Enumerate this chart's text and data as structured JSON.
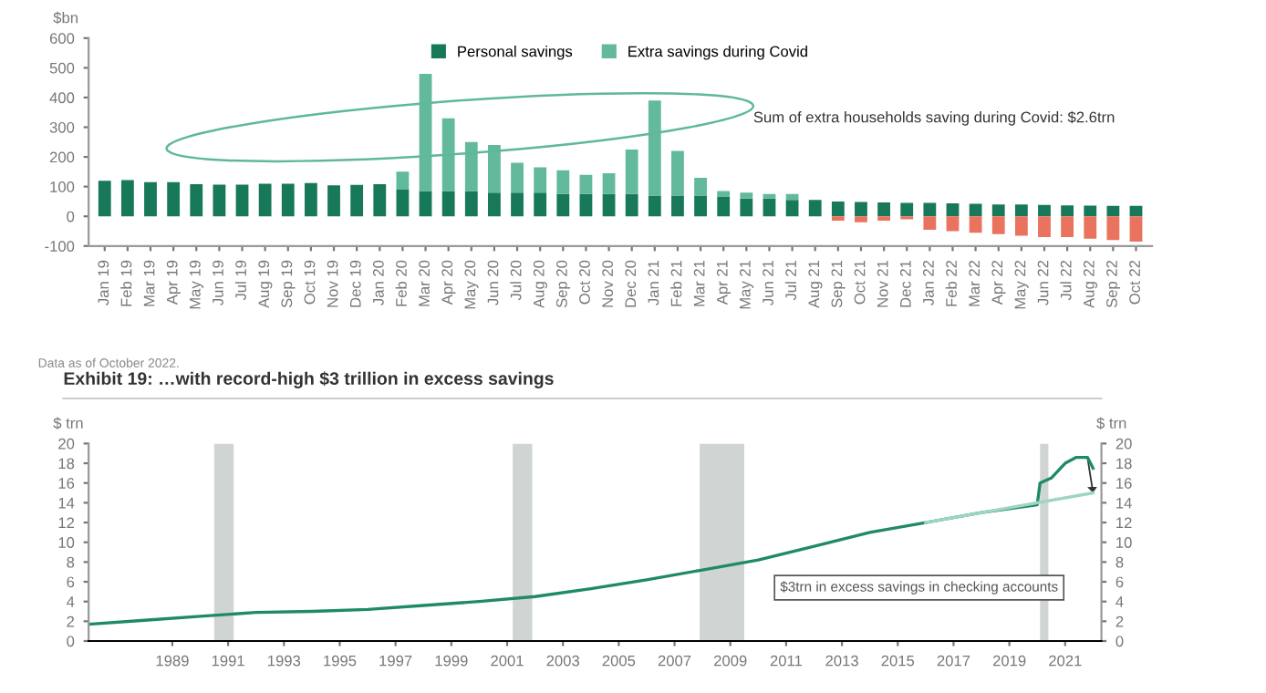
{
  "chart_data": [
    {
      "type": "bar",
      "stacked": true,
      "ylabel": "$bn",
      "legend": "top",
      "grid": false,
      "categories": [
        "Jan 19",
        "Feb 19",
        "Mar 19",
        "Apr 19",
        "May 19",
        "Jun 19",
        "Jul 19",
        "Aug 19",
        "Sep 19",
        "Oct 19",
        "Nov 19",
        "Dec 19",
        "Jan 20",
        "Feb 20",
        "Mar 20",
        "Apr 20",
        "May 20",
        "Jun 20",
        "Jul 20",
        "Aug 20",
        "Sep 20",
        "Oct 20",
        "Nov 20",
        "Dec 20",
        "Jan 21",
        "Feb 21",
        "Mar 21",
        "Apr 21",
        "May 21",
        "Jun 21",
        "Jul 21",
        "Aug 21",
        "Sep 21",
        "Oct 21",
        "Nov 21",
        "Dec 21",
        "Jan 22",
        "Feb 22",
        "Mar 22",
        "Apr 22",
        "May 22",
        "Jun 22",
        "Jul 22",
        "Aug 22",
        "Sep 22",
        "Oct 22"
      ],
      "series": [
        {
          "name": "Personal savings",
          "color": "#17785a",
          "values": [
            120,
            122,
            115,
            115,
            108,
            107,
            107,
            110,
            110,
            112,
            104,
            106,
            108,
            90,
            85,
            85,
            85,
            80,
            80,
            80,
            75,
            75,
            75,
            75,
            70,
            70,
            70,
            65,
            60,
            60,
            55,
            55,
            50,
            48,
            47,
            45,
            45,
            44,
            42,
            40,
            40,
            38,
            37,
            36,
            35,
            35
          ]
        },
        {
          "name": "Extra savings during Covid",
          "color": "#63b99b",
          "colors": [
            "#63b99b",
            "#63b99b",
            "#63b99b",
            "#63b99b",
            "#63b99b",
            "#63b99b",
            "#63b99b",
            "#63b99b",
            "#63b99b",
            "#63b99b",
            "#63b99b",
            "#63b99b",
            "#63b99b",
            "#63b99b",
            "#63b99b",
            "#63b99b",
            "#63b99b",
            "#63b99b",
            "#63b99b",
            "#63b99b",
            "#63b99b",
            "#63b99b",
            "#63b99b",
            "#63b99b",
            "#63b99b",
            "#63b99b",
            "#63b99b",
            "#63b99b",
            "#63b99b",
            "#63b99b",
            "#63b99b",
            "#63b99b",
            "#e9735f",
            "#e9735f",
            "#e9735f",
            "#e9735f",
            "#e9735f",
            "#e9735f",
            "#e9735f",
            "#e9735f",
            "#e9735f",
            "#e9735f",
            "#e9735f",
            "#e9735f",
            "#e9735f",
            "#e9735f"
          ],
          "values": [
            0,
            0,
            0,
            0,
            0,
            0,
            0,
            0,
            0,
            0,
            0,
            0,
            0,
            60,
            395,
            245,
            165,
            160,
            100,
            85,
            80,
            65,
            70,
            150,
            320,
            150,
            60,
            20,
            20,
            15,
            20,
            0,
            -15,
            -20,
            -15,
            -10,
            -45,
            -50,
            -55,
            -60,
            -65,
            -70,
            -70,
            -75,
            -80,
            -85
          ]
        }
      ],
      "ylim": [
        -100,
        600
      ],
      "yticks": [
        -100,
        0,
        100,
        200,
        300,
        400,
        500,
        600
      ],
      "annotations": [
        "Sum of extra households saving during Covid: $2.6trn",
        "Data as of October 2022."
      ]
    },
    {
      "type": "line",
      "title": "Exhibit 19: …with record-high $3 trillion in excess savings",
      "ylabel": "$ trn",
      "y2label": "$ trn",
      "grid": false,
      "series": [
        {
          "color": "#1f8a66",
          "x": [
            1986,
            1988,
            1990,
            1992,
            1994,
            1996,
            1998,
            2000,
            2002,
            2004,
            2006,
            2008,
            2010,
            2012,
            2014,
            2016,
            2018,
            2020.0,
            2020.1,
            2020.5,
            2021.0,
            2021.4,
            2021.8,
            2022.0
          ],
          "values": [
            1.7,
            2.1,
            2.5,
            2.9,
            3.0,
            3.2,
            3.6,
            4.0,
            4.5,
            5.3,
            6.2,
            7.2,
            8.2,
            9.6,
            11.0,
            12.0,
            13.0,
            13.8,
            16.0,
            16.5,
            18.0,
            18.6,
            18.6,
            17.5
          ]
        },
        {
          "color": "#9fd6bf",
          "x": [
            2016,
            2022
          ],
          "values": [
            12.0,
            15.0
          ]
        }
      ],
      "xlim": [
        1986,
        2022.3
      ],
      "xticks": [
        1989,
        1991,
        1993,
        1995,
        1997,
        1999,
        2001,
        2003,
        2005,
        2007,
        2009,
        2011,
        2013,
        2015,
        2017,
        2019,
        2021
      ],
      "ylim": [
        0,
        20
      ],
      "yticks": [
        0,
        2,
        4,
        6,
        8,
        10,
        12,
        14,
        16,
        18,
        20
      ],
      "y2lim": [
        0,
        20
      ],
      "y2ticks": [
        0,
        2,
        4,
        6,
        8,
        10,
        12,
        14,
        16,
        18,
        20
      ],
      "bands": [
        {
          "axis": "x",
          "from": 1990.5,
          "to": 1991.2,
          "color": "#d0d4d3"
        },
        {
          "axis": "x",
          "from": 2001.2,
          "to": 2001.9,
          "color": "#d0d4d3"
        },
        {
          "axis": "x",
          "from": 2007.9,
          "to": 2009.5,
          "color": "#d0d4d3"
        },
        {
          "axis": "x",
          "from": 2020.1,
          "to": 2020.4,
          "color": "#d0d4d3"
        }
      ],
      "annotations": [
        "$3trn in excess savings in checking accounts"
      ]
    }
  ]
}
